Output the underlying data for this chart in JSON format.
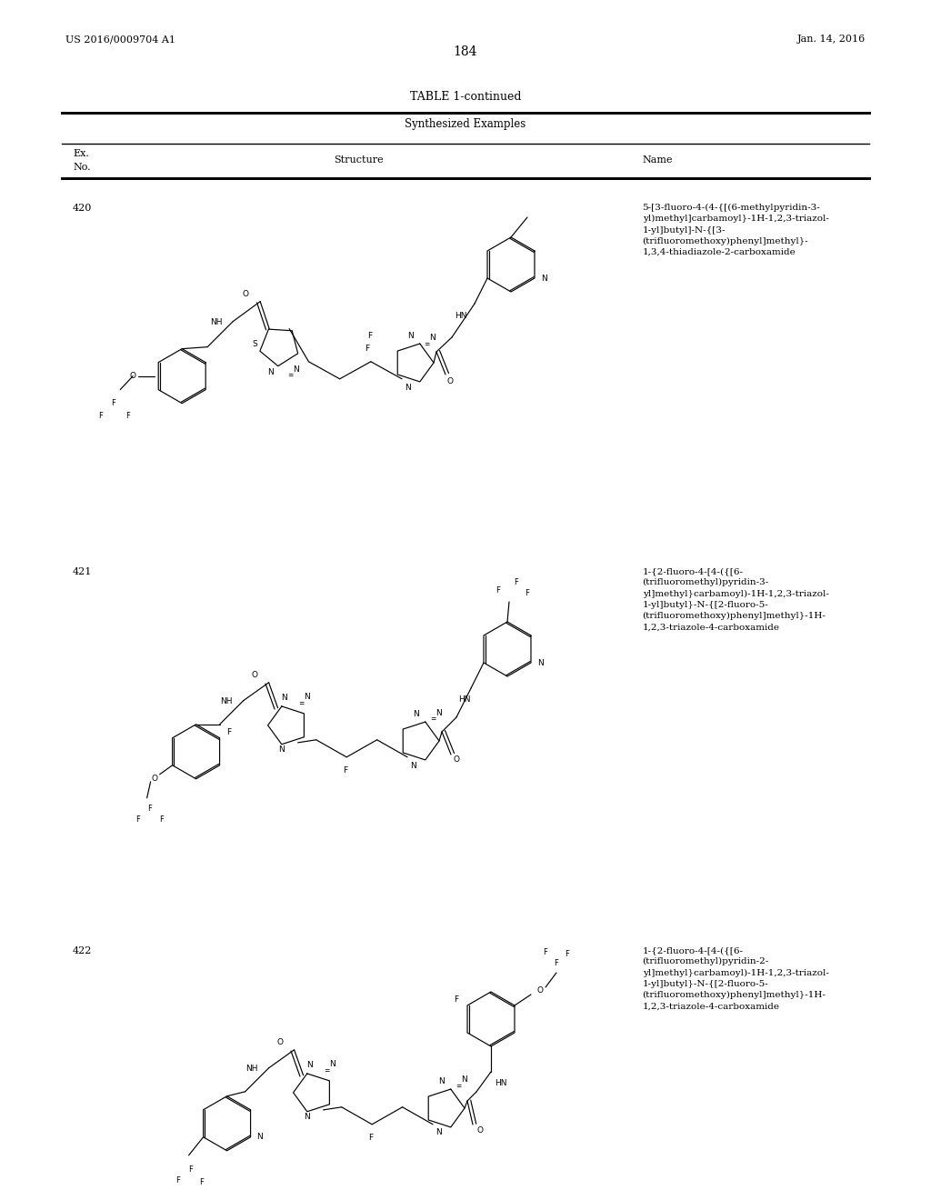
{
  "page_number": "184",
  "patent_number": "US 2016/0009704 A1",
  "patent_date": "Jan. 14, 2016",
  "table_title": "TABLE 1-continued",
  "table_subtitle": "Synthesized Examples",
  "background_color": "#ffffff",
  "entries": [
    {
      "ex_no": "420",
      "name": "5-[3-fluoro-4-(4-{[(6-methylpyridin-3-\nyl)methyl]carbamoyl}-1H-1,2,3-triazol-\n1-yl]butyl]-N-{[3-\n(trifluoromethoxy)phenyl]methyl}-\n1,3,4-thiadiazole-2-carboxamide"
    },
    {
      "ex_no": "421",
      "name": "1-{2-fluoro-4-[4-({[6-\n(trifluoromethyl)pyridin-3-\nyl]methyl}carbamoyl)-1H-1,2,3-triazol-\n1-yl]butyl}-N-{[2-fluoro-5-\n(trifluoromethoxy)phenyl]methyl}-1H-\n1,2,3-triazole-4-carboxamide"
    },
    {
      "ex_no": "422",
      "name": "1-{2-fluoro-4-[4-({[6-\n(trifluoromethyl)pyridin-2-\nyl]methyl}carbamoyl)-1H-1,2,3-triazol-\n1-yl]butyl}-N-{[2-fluoro-5-\n(trifluoromethoxy)phenyl]methyl}-1H-\n1,2,3-triazole-4-carboxamide"
    }
  ]
}
